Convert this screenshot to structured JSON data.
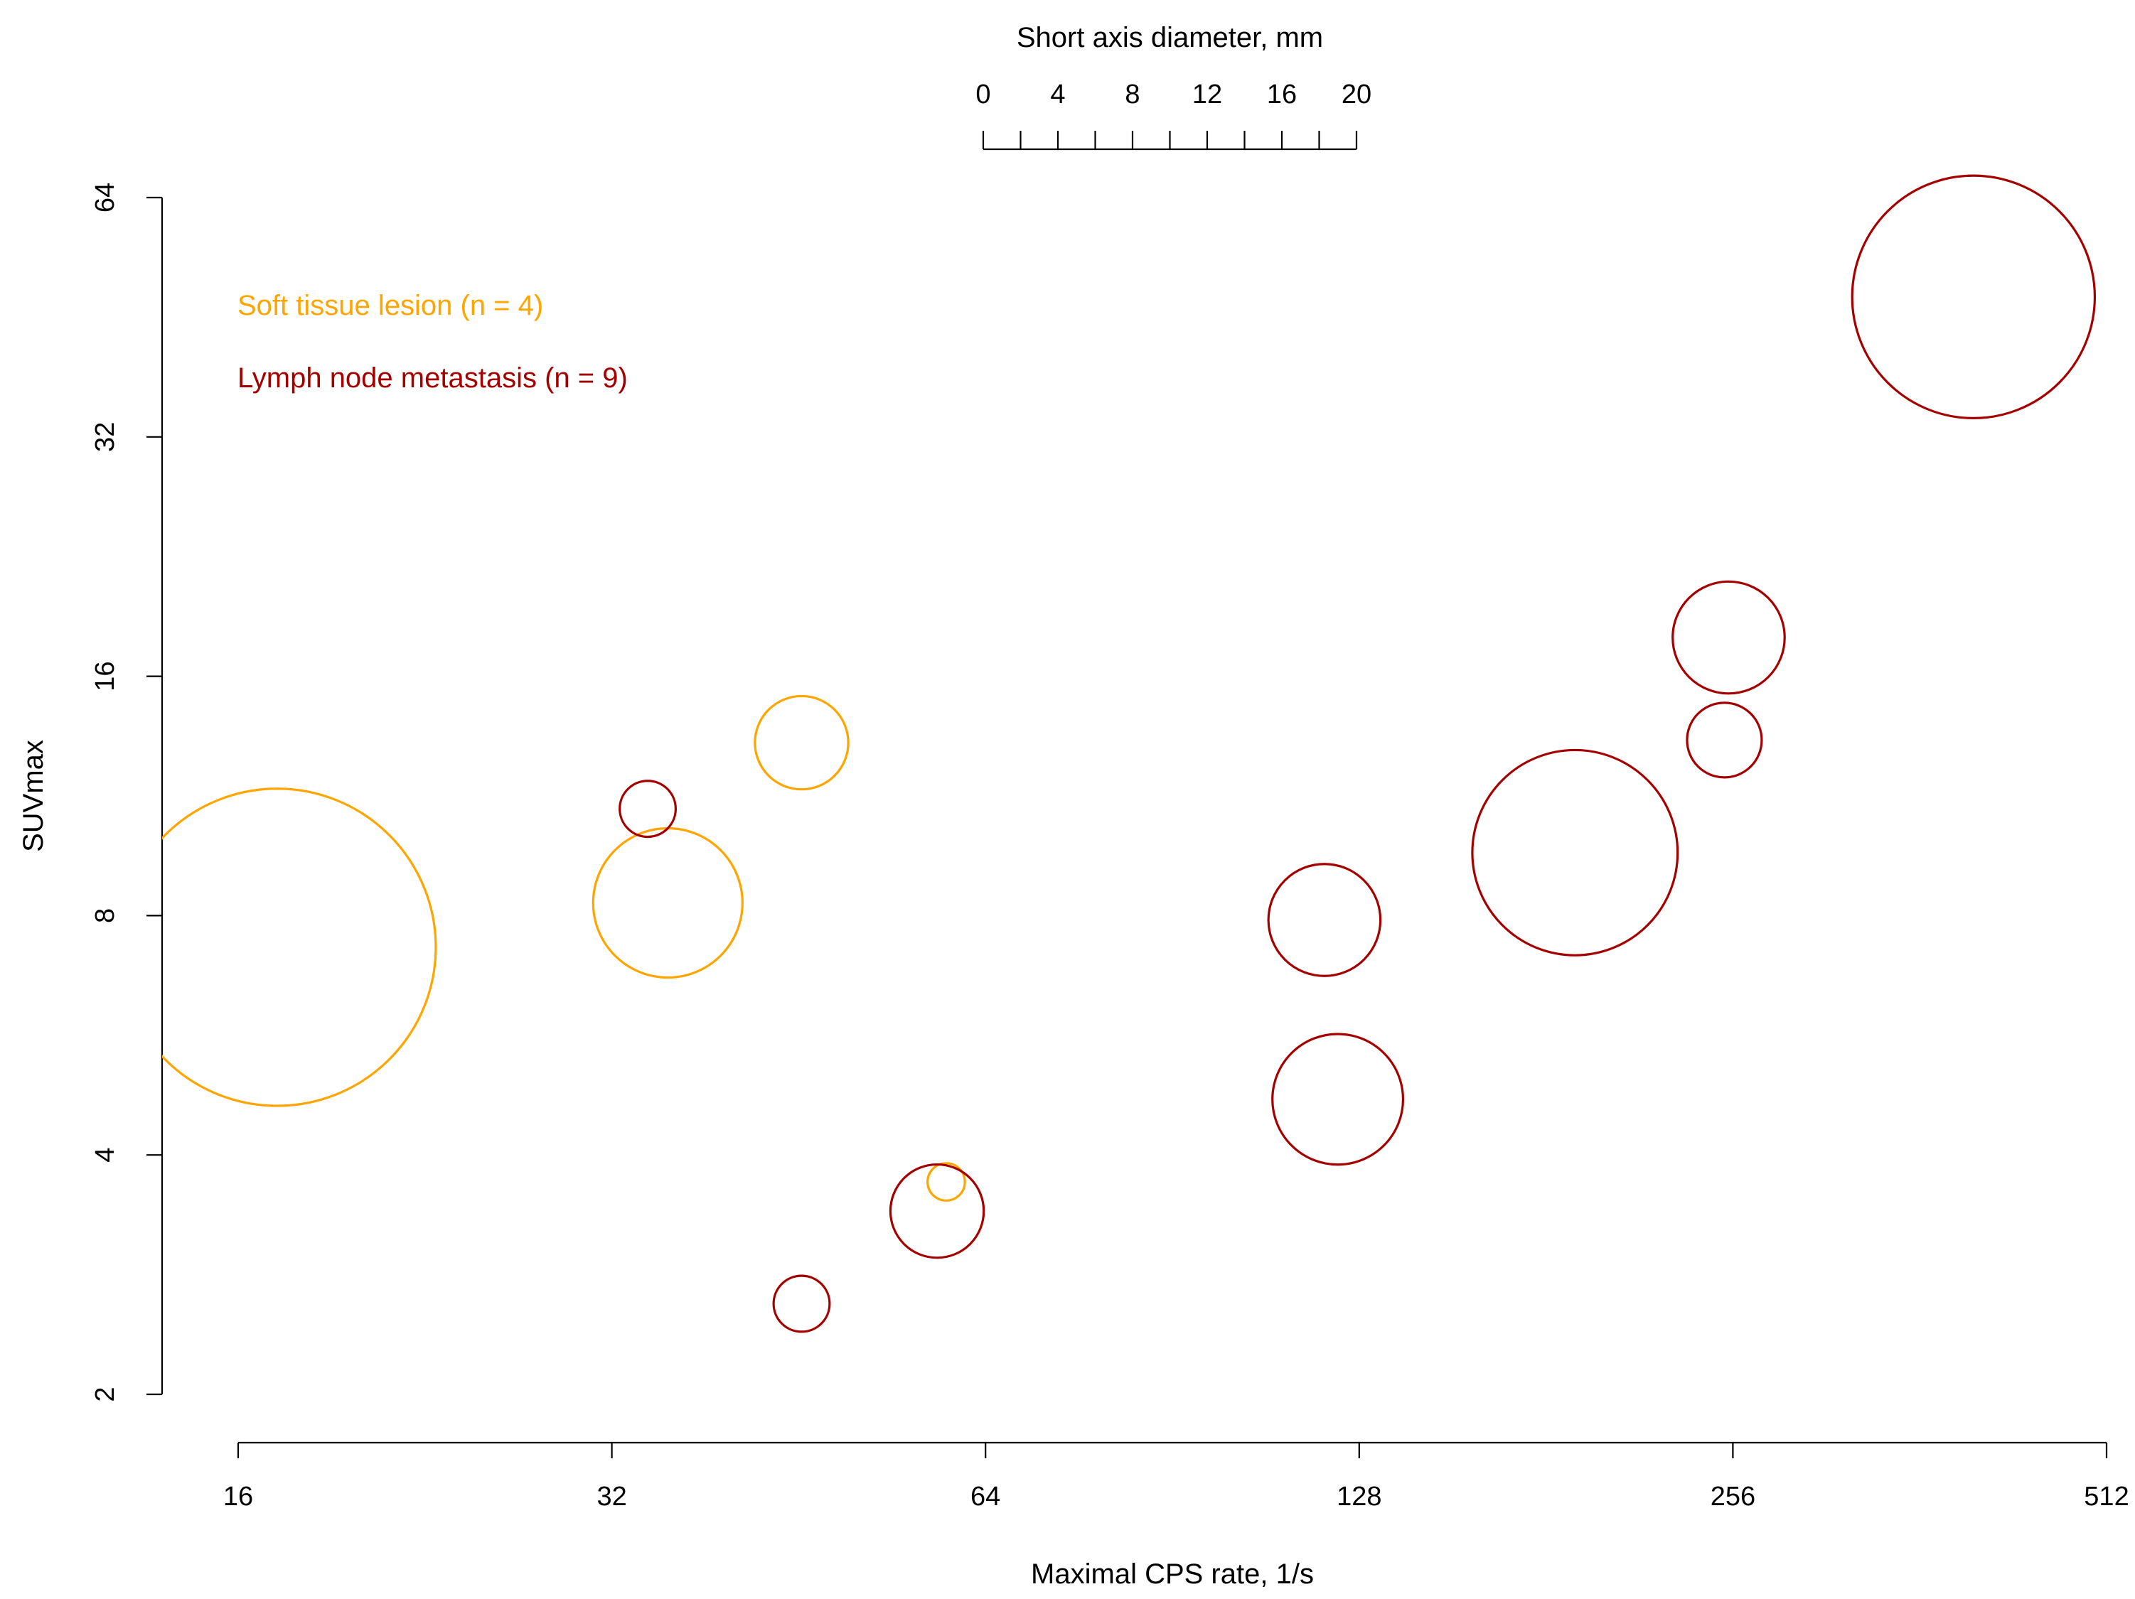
{
  "chart_data": {
    "type": "scatter",
    "subtype": "bubble",
    "xlabel": "Maximal CPS rate, 1/s",
    "ylabel": "SUVmax",
    "x_scale": "log2",
    "y_scale": "log2",
    "xlim": [
      16,
      512
    ],
    "ylim": [
      2,
      64
    ],
    "x_ticks": [
      16,
      32,
      64,
      128,
      256,
      512
    ],
    "y_ticks": [
      2,
      4,
      8,
      16,
      32,
      64
    ],
    "size_legend": {
      "title": "Short axis diameter, mm",
      "ticks": [
        0,
        4,
        8,
        12,
        16,
        20
      ],
      "minor_step": 2,
      "range": [
        0,
        20
      ]
    },
    "legend": {
      "placement": "top-left",
      "entries": [
        {
          "label": "Soft tissue lesion (n = 4)",
          "color": "#FFA500"
        },
        {
          "label": "Lymph node metastasis (n = 9)",
          "color": "#A50000"
        }
      ]
    },
    "series": [
      {
        "name": "Soft tissue lesion",
        "color": "#FFA500",
        "points": [
          {
            "x": 17.2,
            "y": 7.3,
            "diameter": 17
          },
          {
            "x": 35.5,
            "y": 8.3,
            "diameter": 8
          },
          {
            "x": 45.5,
            "y": 13.2,
            "diameter": 5
          },
          {
            "x": 59.5,
            "y": 3.7,
            "diameter": 2
          }
        ]
      },
      {
        "name": "Lymph node metastasis",
        "color": "#A50000",
        "points": [
          {
            "x": 34.2,
            "y": 10.9,
            "diameter": 3
          },
          {
            "x": 45.5,
            "y": 2.6,
            "diameter": 3
          },
          {
            "x": 58.5,
            "y": 3.4,
            "diameter": 5
          },
          {
            "x": 120,
            "y": 7.9,
            "diameter": 6
          },
          {
            "x": 123,
            "y": 4.7,
            "diameter": 7
          },
          {
            "x": 191,
            "y": 9.6,
            "diameter": 11
          },
          {
            "x": 254,
            "y": 17.9,
            "diameter": 6
          },
          {
            "x": 252,
            "y": 13.3,
            "diameter": 4
          },
          {
            "x": 400,
            "y": 48,
            "diameter": 13
          }
        ]
      }
    ]
  }
}
